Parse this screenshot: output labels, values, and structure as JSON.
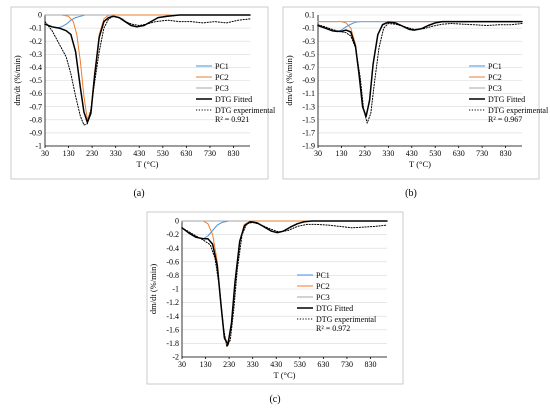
{
  "chart_data": [
    {
      "type": "line",
      "panel_label": "(a)",
      "xlabel": "T (°C)",
      "ylabel": "dm/dt (%/min)",
      "xlim": [
        30,
        900
      ],
      "ylim": [
        -1,
        0
      ],
      "x_ticks": [
        30,
        130,
        230,
        330,
        430,
        530,
        630,
        730,
        830
      ],
      "y_ticks": [
        0,
        -0.1,
        -0.2,
        -0.3,
        -0.4,
        -0.5,
        -0.6,
        -0.7,
        -0.8,
        -0.9,
        -1
      ],
      "y_tick_labels": [
        "0",
        "-0.1",
        "-0.2",
        "-0.3",
        "-0.4",
        "-0.5",
        "-0.6",
        "-0.7",
        "-0.8",
        "-0.9",
        "-1"
      ],
      "legend_position": "right",
      "r2_label": "R² = 0.921",
      "series": [
        {
          "name": "PC1",
          "color": "#4a90d9",
          "style": "solid",
          "x": [
            30,
            60,
            80,
            100,
            120,
            140,
            160,
            180,
            200,
            250,
            300,
            900
          ],
          "y": [
            -0.07,
            -0.09,
            -0.1,
            -0.09,
            -0.07,
            -0.04,
            -0.02,
            -0.01,
            0,
            0,
            0,
            0
          ]
        },
        {
          "name": "PC2",
          "color": "#ed7d31",
          "style": "solid",
          "x": [
            30,
            100,
            130,
            150,
            165,
            180,
            195,
            210,
            225,
            240,
            260,
            280,
            300,
            900
          ],
          "y": [
            0,
            0,
            -0.01,
            -0.05,
            -0.15,
            -0.35,
            -0.62,
            -0.8,
            -0.73,
            -0.45,
            -0.15,
            -0.03,
            0,
            0
          ]
        },
        {
          "name": "PC3",
          "color": "#a6a6a6",
          "style": "solid",
          "x": [
            30,
            300,
            330,
            360,
            390,
            420,
            450,
            480,
            510,
            540,
            570,
            900
          ],
          "y": [
            0,
            0,
            -0.01,
            -0.03,
            -0.07,
            -0.09,
            -0.08,
            -0.05,
            -0.02,
            -0.01,
            0,
            0
          ]
        },
        {
          "name": "DTG Fitted",
          "color": "#000000",
          "style": "solid",
          "x": [
            30,
            60,
            90,
            120,
            140,
            160,
            180,
            195,
            210,
            225,
            240,
            260,
            280,
            300,
            320,
            345,
            370,
            395,
            420,
            450,
            480,
            510,
            550,
            600,
            900
          ],
          "y": [
            -0.07,
            -0.09,
            -0.1,
            -0.12,
            -0.15,
            -0.28,
            -0.55,
            -0.74,
            -0.82,
            -0.75,
            -0.47,
            -0.17,
            -0.05,
            -0.02,
            -0.01,
            -0.02,
            -0.05,
            -0.08,
            -0.09,
            -0.08,
            -0.05,
            -0.02,
            -0.01,
            0,
            0
          ]
        },
        {
          "name": "DTG experimental",
          "color": "#000000",
          "style": "dotted",
          "x": [
            30,
            60,
            90,
            120,
            140,
            160,
            180,
            195,
            210,
            225,
            240,
            260,
            280,
            300,
            320,
            345,
            370,
            400,
            430,
            460,
            500,
            550,
            600,
            650,
            700,
            750,
            800,
            850,
            900
          ],
          "y": [
            -0.05,
            -0.12,
            -0.22,
            -0.32,
            -0.45,
            -0.62,
            -0.77,
            -0.84,
            -0.83,
            -0.72,
            -0.52,
            -0.28,
            -0.1,
            -0.03,
            -0.01,
            -0.02,
            -0.05,
            -0.07,
            -0.08,
            -0.07,
            -0.05,
            -0.04,
            -0.05,
            -0.05,
            -0.06,
            -0.05,
            -0.06,
            -0.04,
            -0.03
          ]
        }
      ]
    },
    {
      "type": "line",
      "panel_label": "(b)",
      "xlabel": "T (°C)",
      "ylabel": "dm/dt (%/min)",
      "xlim": [
        30,
        900
      ],
      "ylim": [
        -1.9,
        0.1
      ],
      "x_ticks": [
        30,
        130,
        230,
        330,
        430,
        530,
        630,
        730,
        830
      ],
      "y_ticks": [
        0.1,
        -0.1,
        -0.3,
        -0.5,
        -0.7,
        -0.9,
        -1.1,
        -1.3,
        -1.5,
        -1.7,
        -1.9
      ],
      "y_tick_labels": [
        "0.1",
        "-0.1",
        "-0.3",
        "-0.5",
        "-0.7",
        "-0.9",
        "-1.1",
        "-1.3",
        "-1.5",
        "-1.7",
        "-1.9"
      ],
      "legend_position": "right",
      "r2_label": "R² = 0.967",
      "series": [
        {
          "name": "PC1",
          "color": "#4a90d9",
          "style": "solid",
          "x": [
            30,
            60,
            90,
            110,
            130,
            150,
            170,
            190,
            210,
            250,
            900
          ],
          "y": [
            -0.06,
            -0.1,
            -0.14,
            -0.15,
            -0.13,
            -0.08,
            -0.04,
            -0.01,
            0,
            0,
            0
          ]
        },
        {
          "name": "PC2",
          "color": "#ed7d31",
          "style": "solid",
          "x": [
            30,
            130,
            150,
            170,
            190,
            205,
            220,
            235,
            250,
            265,
            285,
            305,
            330,
            900
          ],
          "y": [
            0,
            0,
            -0.02,
            -0.1,
            -0.35,
            -0.8,
            -1.3,
            -1.45,
            -1.2,
            -0.65,
            -0.2,
            -0.04,
            0,
            0
          ]
        },
        {
          "name": "PC3",
          "color": "#a6a6a6",
          "style": "solid",
          "x": [
            30,
            330,
            360,
            390,
            420,
            440,
            470,
            500,
            530,
            560,
            900
          ],
          "y": [
            0,
            0,
            -0.02,
            -0.07,
            -0.12,
            -0.13,
            -0.11,
            -0.06,
            -0.02,
            0,
            0
          ]
        },
        {
          "name": "DTG Fitted",
          "color": "#000000",
          "style": "solid",
          "x": [
            30,
            60,
            90,
            110,
            130,
            150,
            170,
            190,
            205,
            220,
            235,
            250,
            265,
            285,
            305,
            330,
            360,
            390,
            420,
            440,
            470,
            500,
            530,
            560,
            600,
            900
          ],
          "y": [
            -0.06,
            -0.1,
            -0.14,
            -0.15,
            -0.15,
            -0.13,
            -0.16,
            -0.38,
            -0.8,
            -1.3,
            -1.45,
            -1.2,
            -0.65,
            -0.2,
            -0.05,
            -0.01,
            -0.02,
            -0.07,
            -0.12,
            -0.13,
            -0.11,
            -0.06,
            -0.02,
            0,
            0,
            0
          ]
        },
        {
          "name": "DTG experimental",
          "color": "#000000",
          "style": "dotted",
          "x": [
            30,
            60,
            90,
            120,
            150,
            170,
            190,
            210,
            225,
            240,
            255,
            270,
            290,
            310,
            330,
            360,
            400,
            440,
            480,
            520,
            560,
            600,
            650,
            700,
            750,
            800,
            850,
            900
          ],
          "y": [
            -0.05,
            -0.08,
            -0.12,
            -0.15,
            -0.17,
            -0.22,
            -0.4,
            -0.85,
            -1.35,
            -1.55,
            -1.4,
            -0.95,
            -0.4,
            -0.1,
            -0.03,
            -0.04,
            -0.08,
            -0.12,
            -0.11,
            -0.07,
            -0.04,
            -0.03,
            -0.04,
            -0.05,
            -0.06,
            -0.05,
            -0.05,
            -0.03
          ]
        }
      ]
    },
    {
      "type": "line",
      "panel_label": "(c)",
      "xlabel": "T (°C)",
      "ylabel": "dm/dt (%/min)",
      "xlim": [
        30,
        900
      ],
      "ylim": [
        -2,
        0
      ],
      "x_ticks": [
        30,
        130,
        230,
        330,
        430,
        530,
        630,
        730,
        830
      ],
      "y_ticks": [
        0,
        -0.2,
        -0.4,
        -0.6,
        -0.8,
        -1,
        -1.2,
        -1.4,
        -1.6,
        -1.8,
        -2
      ],
      "y_tick_labels": [
        "0",
        "-0.2",
        "-0.4",
        "-0.6",
        "-0.8",
        "-1",
        "-1.2",
        "-1.4",
        "-1.6",
        "-1.8",
        "-2"
      ],
      "legend_position": "right",
      "r2_label": "R² = 0.972",
      "series": [
        {
          "name": "PC1",
          "color": "#4a90d9",
          "style": "solid",
          "x": [
            30,
            60,
            90,
            120,
            140,
            160,
            180,
            200,
            230,
            900
          ],
          "y": [
            -0.1,
            -0.18,
            -0.24,
            -0.26,
            -0.22,
            -0.14,
            -0.06,
            -0.02,
            0,
            0
          ]
        },
        {
          "name": "PC2",
          "color": "#ed7d31",
          "style": "solid",
          "x": [
            30,
            120,
            140,
            160,
            180,
            195,
            210,
            225,
            240,
            255,
            275,
            295,
            320,
            900
          ],
          "y": [
            0,
            0,
            -0.04,
            -0.2,
            -0.6,
            -1.2,
            -1.7,
            -1.8,
            -1.5,
            -0.9,
            -0.3,
            -0.05,
            0,
            0
          ]
        },
        {
          "name": "PC3",
          "color": "#a6a6a6",
          "style": "solid",
          "x": [
            30,
            320,
            350,
            380,
            410,
            435,
            460,
            490,
            520,
            550,
            580,
            900
          ],
          "y": [
            0,
            0,
            -0.03,
            -0.09,
            -0.15,
            -0.17,
            -0.15,
            -0.09,
            -0.04,
            -0.01,
            0,
            0
          ]
        },
        {
          "name": "DTG Fitted",
          "color": "#000000",
          "style": "solid",
          "x": [
            30,
            60,
            90,
            120,
            140,
            160,
            180,
            195,
            210,
            225,
            240,
            255,
            275,
            295,
            320,
            350,
            380,
            410,
            435,
            460,
            490,
            520,
            550,
            580,
            620,
            900
          ],
          "y": [
            -0.1,
            -0.18,
            -0.24,
            -0.26,
            -0.26,
            -0.34,
            -0.66,
            -1.22,
            -1.72,
            -1.82,
            -1.5,
            -0.9,
            -0.3,
            -0.07,
            -0.01,
            -0.03,
            -0.09,
            -0.15,
            -0.17,
            -0.15,
            -0.09,
            -0.04,
            -0.01,
            0,
            0,
            0
          ]
        },
        {
          "name": "DTG experimental",
          "color": "#000000",
          "style": "dotted",
          "x": [
            30,
            60,
            90,
            120,
            150,
            170,
            190,
            205,
            220,
            235,
            250,
            265,
            285,
            305,
            330,
            360,
            400,
            440,
            480,
            520,
            560,
            600,
            650,
            700,
            750,
            800,
            850,
            900
          ],
          "y": [
            -0.1,
            -0.16,
            -0.22,
            -0.28,
            -0.35,
            -0.55,
            -1.0,
            -1.55,
            -1.85,
            -1.75,
            -1.3,
            -0.7,
            -0.2,
            -0.04,
            -0.02,
            -0.05,
            -0.11,
            -0.16,
            -0.14,
            -0.08,
            -0.05,
            -0.05,
            -0.06,
            -0.08,
            -0.1,
            -0.09,
            -0.08,
            -0.06
          ]
        }
      ]
    }
  ]
}
